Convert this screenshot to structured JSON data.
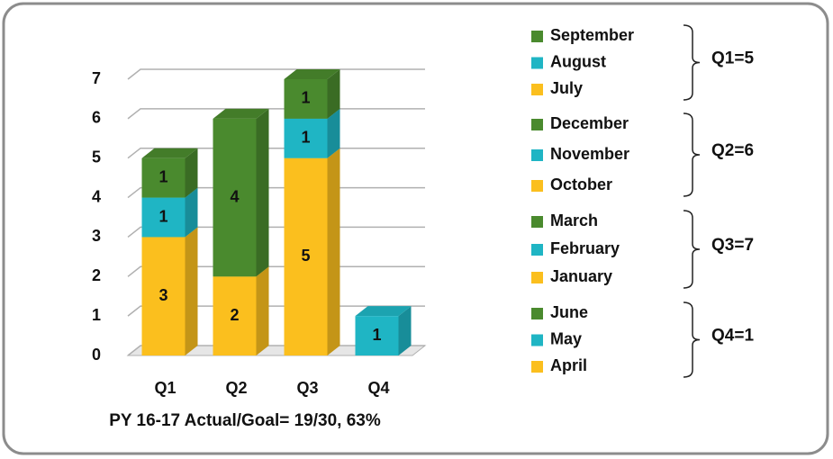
{
  "chart_data": {
    "type": "stacked_bar_3d",
    "categories": [
      "Q1",
      "Q2",
      "Q3",
      "Q4"
    ],
    "series": [
      {
        "color": "#fbbf1e",
        "values": [
          3,
          2,
          5,
          0
        ]
      },
      {
        "color": "#1fb5c4",
        "values": [
          1,
          0,
          1,
          1
        ]
      },
      {
        "color": "#4a8a2e",
        "values": [
          1,
          4,
          1,
          0
        ]
      }
    ],
    "ylim": [
      0,
      7
    ],
    "yticks": [
      0,
      1,
      2,
      3,
      4,
      5,
      6,
      7
    ],
    "grid": true,
    "annotation": "PY 16-17 Actual/Goal= 19/30, 63%",
    "legend_groups": [
      {
        "items": [
          "September",
          "August",
          "July"
        ],
        "label": "Q1=5"
      },
      {
        "items": [
          "December",
          "November",
          "October"
        ],
        "label": "Q2=6"
      },
      {
        "items": [
          "March",
          "February",
          "January"
        ],
        "label": "Q3=7"
      },
      {
        "items": [
          "June",
          "May",
          "April"
        ],
        "label": "Q4=1"
      }
    ]
  }
}
